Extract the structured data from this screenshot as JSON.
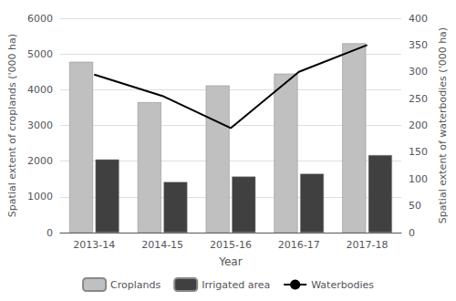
{
  "chart_data": {
    "type": "bar",
    "xlabel": "Year",
    "ylabel": "Spatial extent of croplands ('000 ha)",
    "y2label": "Spatial extent of waterbodies ('000 ha)",
    "categories": [
      "2013-14",
      "2014-15",
      "2015-16",
      "2016-17",
      "2017-18"
    ],
    "series": [
      {
        "name": "Croplands",
        "type": "bar",
        "color": "#c0c0c0",
        "values": [
          4780,
          3650,
          4120,
          4450,
          5300
        ]
      },
      {
        "name": "Irrigated area",
        "type": "bar",
        "color": "#404040",
        "values": [
          2050,
          1420,
          1570,
          1650,
          2170
        ]
      },
      {
        "name": "Waterbodies",
        "type": "line",
        "color": "#000000",
        "values": [
          295,
          255,
          195,
          300,
          350
        ],
        "axis": "y2"
      }
    ],
    "ylim": [
      0,
      6000
    ],
    "yticks": [
      0,
      1000,
      2000,
      3000,
      4000,
      5000,
      6000
    ],
    "y2lim": [
      0,
      400
    ],
    "y2ticks": [
      0,
      50,
      100,
      150,
      200,
      250,
      300,
      350,
      400
    ],
    "grid": true,
    "legend": "bottom"
  }
}
